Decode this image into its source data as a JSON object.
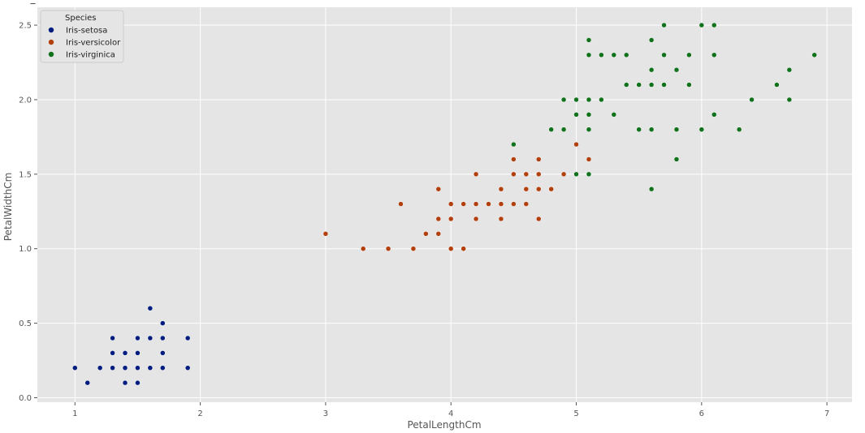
{
  "chart_data": {
    "type": "scatter",
    "title": "",
    "xlabel": "PetalLengthCm",
    "ylabel": "PetalWidthCm",
    "xlim": [
      0.7,
      7.2
    ],
    "ylim": [
      -0.03,
      2.62
    ],
    "xticks": [
      1,
      2,
      3,
      4,
      5,
      6,
      7
    ],
    "yticks": [
      0.0,
      0.5,
      1.0,
      1.5,
      2.0,
      2.5
    ],
    "xtick_labels": [
      "1",
      "2",
      "3",
      "4",
      "5",
      "6",
      "7"
    ],
    "ytick_labels": [
      "0.0",
      "0.5",
      "1.0",
      "1.5",
      "2.0",
      "2.5"
    ],
    "grid": true,
    "legend_title": "Species",
    "legend_position": "top-left",
    "series": [
      {
        "name": "Iris-setosa",
        "color": "#001c7f",
        "points": [
          [
            1.0,
            0.2
          ],
          [
            1.1,
            0.1
          ],
          [
            1.2,
            0.2
          ],
          [
            1.3,
            0.2
          ],
          [
            1.3,
            0.3
          ],
          [
            1.3,
            0.4
          ],
          [
            1.4,
            0.1
          ],
          [
            1.4,
            0.2
          ],
          [
            1.4,
            0.3
          ],
          [
            1.5,
            0.1
          ],
          [
            1.5,
            0.2
          ],
          [
            1.5,
            0.3
          ],
          [
            1.5,
            0.4
          ],
          [
            1.6,
            0.2
          ],
          [
            1.6,
            0.4
          ],
          [
            1.6,
            0.6
          ],
          [
            1.7,
            0.2
          ],
          [
            1.7,
            0.3
          ],
          [
            1.7,
            0.4
          ],
          [
            1.7,
            0.5
          ],
          [
            1.9,
            0.2
          ],
          [
            1.9,
            0.4
          ]
        ]
      },
      {
        "name": "Iris-versicolor",
        "color": "#b1400d",
        "points": [
          [
            3.0,
            1.1
          ],
          [
            3.3,
            1.0
          ],
          [
            3.5,
            1.0
          ],
          [
            3.6,
            1.3
          ],
          [
            3.7,
            1.0
          ],
          [
            3.8,
            1.1
          ],
          [
            3.9,
            1.1
          ],
          [
            3.9,
            1.2
          ],
          [
            3.9,
            1.4
          ],
          [
            4.0,
            1.0
          ],
          [
            4.0,
            1.2
          ],
          [
            4.0,
            1.3
          ],
          [
            4.1,
            1.0
          ],
          [
            4.1,
            1.3
          ],
          [
            4.2,
            1.2
          ],
          [
            4.2,
            1.3
          ],
          [
            4.2,
            1.5
          ],
          [
            4.3,
            1.3
          ],
          [
            4.4,
            1.2
          ],
          [
            4.4,
            1.3
          ],
          [
            4.4,
            1.4
          ],
          [
            4.5,
            1.3
          ],
          [
            4.5,
            1.5
          ],
          [
            4.5,
            1.6
          ],
          [
            4.6,
            1.3
          ],
          [
            4.6,
            1.4
          ],
          [
            4.6,
            1.5
          ],
          [
            4.7,
            1.2
          ],
          [
            4.7,
            1.4
          ],
          [
            4.7,
            1.5
          ],
          [
            4.7,
            1.6
          ],
          [
            4.8,
            1.4
          ],
          [
            4.9,
            1.5
          ],
          [
            5.0,
            1.7
          ],
          [
            5.1,
            1.6
          ]
        ]
      },
      {
        "name": "Iris-virginica",
        "color": "#12711c",
        "points": [
          [
            4.5,
            1.7
          ],
          [
            4.8,
            1.8
          ],
          [
            4.9,
            1.8
          ],
          [
            4.9,
            2.0
          ],
          [
            5.0,
            1.5
          ],
          [
            5.0,
            1.9
          ],
          [
            5.0,
            2.0
          ],
          [
            5.1,
            1.5
          ],
          [
            5.1,
            1.8
          ],
          [
            5.1,
            1.9
          ],
          [
            5.1,
            2.0
          ],
          [
            5.1,
            2.3
          ],
          [
            5.1,
            2.4
          ],
          [
            5.2,
            2.0
          ],
          [
            5.2,
            2.3
          ],
          [
            5.3,
            1.9
          ],
          [
            5.3,
            2.3
          ],
          [
            5.4,
            2.1
          ],
          [
            5.4,
            2.3
          ],
          [
            5.5,
            1.8
          ],
          [
            5.5,
            2.1
          ],
          [
            5.6,
            1.4
          ],
          [
            5.6,
            1.8
          ],
          [
            5.6,
            2.1
          ],
          [
            5.6,
            2.2
          ],
          [
            5.6,
            2.4
          ],
          [
            5.7,
            2.1
          ],
          [
            5.7,
            2.3
          ],
          [
            5.7,
            2.5
          ],
          [
            5.8,
            1.6
          ],
          [
            5.8,
            1.8
          ],
          [
            5.8,
            2.2
          ],
          [
            5.9,
            2.1
          ],
          [
            5.9,
            2.3
          ],
          [
            6.0,
            1.8
          ],
          [
            6.0,
            2.5
          ],
          [
            6.1,
            1.9
          ],
          [
            6.1,
            2.3
          ],
          [
            6.1,
            2.5
          ],
          [
            6.3,
            1.8
          ],
          [
            6.4,
            2.0
          ],
          [
            6.6,
            2.1
          ],
          [
            6.7,
            2.0
          ],
          [
            6.7,
            2.2
          ],
          [
            6.9,
            2.3
          ]
        ]
      }
    ]
  }
}
